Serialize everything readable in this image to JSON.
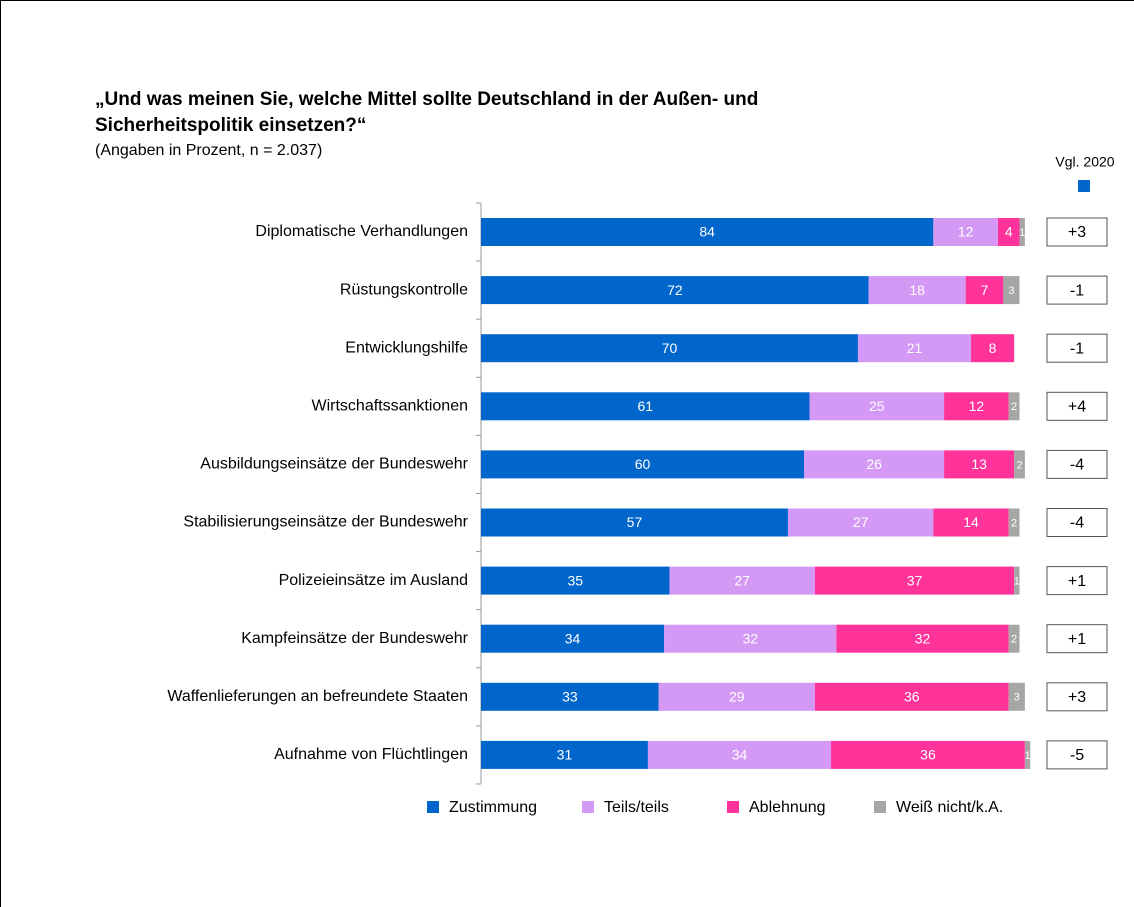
{
  "chart_data": {
    "type": "stacked_barh",
    "title_lines": [
      "„Und was meinen Sie, welche Mittel sollte Deutschland in der Außen- und",
      "Sicherheitspolitik einsetzen?“"
    ],
    "subtitle": "(Angaben in Prozent, n = 2.037)",
    "categories": [
      "Diplomatische Verhandlungen",
      "Rüstungskontrolle",
      "Entwicklungshilfe",
      "Wirtschaftssanktionen",
      "Ausbildungseinsätze der Bundeswehr",
      "Stabilisierungseinsätze der Bundeswehr",
      "Polizeieinsätze im Ausland",
      "Kampfeinsätze der Bundeswehr",
      "Waffenlieferungen an befreundete Staaten",
      "Aufnahme von Flüchtlingen"
    ],
    "series": [
      {
        "name": "Zustimmung",
        "color": "#0066cc",
        "values": [
          84,
          72,
          70,
          61,
          60,
          57,
          35,
          34,
          33,
          31
        ]
      },
      {
        "name": "Teils/teils",
        "color": "#d399f5",
        "values": [
          12,
          18,
          21,
          25,
          26,
          27,
          27,
          32,
          29,
          34
        ]
      },
      {
        "name": "Ablehnung",
        "color": "#ff3399",
        "values": [
          4,
          7,
          8,
          12,
          13,
          14,
          37,
          32,
          36,
          36
        ]
      },
      {
        "name": "Weiß nicht/k.A.",
        "color": "#a6a6a6",
        "values": [
          1,
          3,
          null,
          2,
          2,
          2,
          1,
          2,
          3,
          1
        ]
      }
    ],
    "comparison": {
      "title": "Vgl. 2020",
      "color": "#0066cc",
      "labels": [
        "+3",
        "-1",
        "-1",
        "+4",
        "-4",
        "-4",
        "+1",
        "+1",
        "+3",
        "-5"
      ]
    },
    "legend": "bottom"
  }
}
